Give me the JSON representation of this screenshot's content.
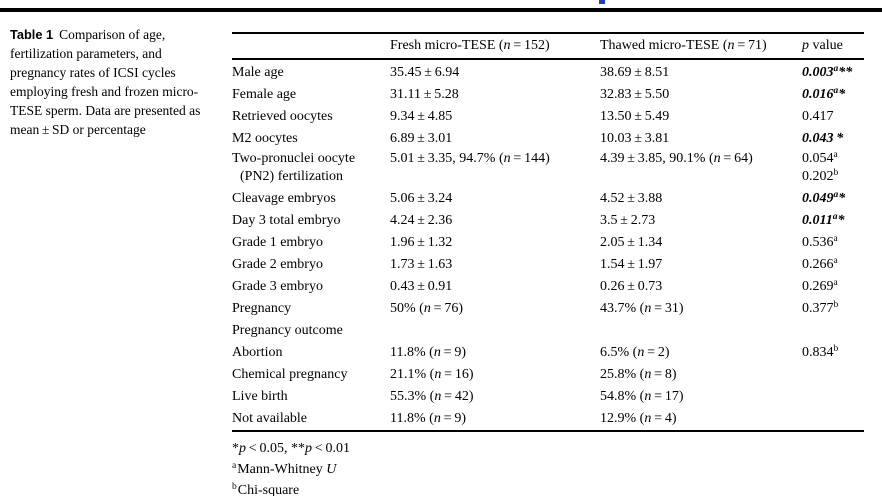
{
  "caption": {
    "label": "Table 1",
    "text": "Comparison of age, fertilization parameters, and pregnancy rates of ICSI cycles employing fresh and frozen micro-TESE sperm. Data are presented as mean ± SD or percentage"
  },
  "table": {
    "headers": {
      "fresh": {
        "pre": "Fresh micro-TESE (",
        "n": "n",
        "post": " = 152)"
      },
      "thawed": {
        "pre": "Thawed micro-TESE (",
        "n": "n",
        "post": " = 71)"
      },
      "p": {
        "italic": "p",
        "rest": " value"
      }
    },
    "rows": [
      {
        "row_class": "trow",
        "label": "Male age",
        "label2": "",
        "f_pre": "35.45 ± 6.94",
        "f_n": "",
        "f_post": "",
        "t_pre": "38.69 ± 8.51",
        "t_n": "",
        "t_post": "",
        "p1": "0.003",
        "p1_sup": "a",
        "p1_stars": "**",
        "p1_class": "pline sig",
        "p2": "",
        "p2_sup": ""
      },
      {
        "row_class": "trow",
        "label": "Female age",
        "label2": "",
        "f_pre": "31.11 ± 5.28",
        "f_n": "",
        "f_post": "",
        "t_pre": "32.83 ± 5.50",
        "t_n": "",
        "t_post": "",
        "p1": "0.016",
        "p1_sup": "a",
        "p1_stars": "*",
        "p1_class": "pline sig",
        "p2": "",
        "p2_sup": ""
      },
      {
        "row_class": "trow",
        "label": "Retrieved oocytes",
        "label2": "",
        "f_pre": "9.34 ± 4.85",
        "f_n": "",
        "f_post": "",
        "t_pre": "13.50 ± 5.49",
        "t_n": "",
        "t_post": "",
        "p1": "0.417",
        "p1_sup": "",
        "p1_stars": "",
        "p1_class": "pline",
        "p2": "",
        "p2_sup": ""
      },
      {
        "row_class": "trow",
        "label": "M2 oocytes",
        "label2": "",
        "f_pre": "6.89 ± 3.01",
        "f_n": "",
        "f_post": "",
        "t_pre": "10.03 ± 3.81",
        "t_n": "",
        "t_post": "",
        "p1": "0.043",
        "p1_sup": "",
        "p1_stars": " *",
        "p1_class": "pline sig",
        "p2": "",
        "p2_sup": ""
      },
      {
        "row_class": "trow tall",
        "label": "Two-pronuclei oocyte",
        "label2": "(PN2) fertilization",
        "f_pre": "5.01 ± 3.35, 94.7% (",
        "f_n": "n",
        "f_post": " = 144)",
        "t_pre": "4.39 ± 3.85, 90.1% (",
        "t_n": "n",
        "t_post": " = 64)",
        "p1": "0.054",
        "p1_sup": "a",
        "p1_stars": "",
        "p1_class": "pline",
        "p2": "0.202",
        "p2_sup": "b"
      },
      {
        "row_class": "trow",
        "label": "Cleavage embryos",
        "label2": "",
        "f_pre": "5.06 ± 3.24",
        "f_n": "",
        "f_post": "",
        "t_pre": "4.52 ± 3.88",
        "t_n": "",
        "t_post": "",
        "p1": "0.049",
        "p1_sup": "a",
        "p1_stars": "*",
        "p1_class": "pline sig",
        "p2": "",
        "p2_sup": ""
      },
      {
        "row_class": "trow",
        "label": "Day 3 total embryo",
        "label2": "",
        "f_pre": "4.24 ± 2.36",
        "f_n": "",
        "f_post": "",
        "t_pre": "3.5 ± 2.73",
        "t_n": "",
        "t_post": "",
        "p1": "0.011",
        "p1_sup": "a",
        "p1_stars": "*",
        "p1_class": "pline sig",
        "p2": "",
        "p2_sup": ""
      },
      {
        "row_class": "trow",
        "label": "Grade 1 embryo",
        "label2": "",
        "f_pre": "1.96 ± 1.32",
        "f_n": "",
        "f_post": "",
        "t_pre": "2.05 ± 1.34",
        "t_n": "",
        "t_post": "",
        "p1": "0.536",
        "p1_sup": "a",
        "p1_stars": "",
        "p1_class": "pline",
        "p2": "",
        "p2_sup": ""
      },
      {
        "row_class": "trow",
        "label": "Grade 2 embryo",
        "label2": "",
        "f_pre": "1.73 ± 1.63",
        "f_n": "",
        "f_post": "",
        "t_pre": "1.54 ± 1.97",
        "t_n": "",
        "t_post": "",
        "p1": "0.266",
        "p1_sup": "a",
        "p1_stars": "",
        "p1_class": "pline",
        "p2": "",
        "p2_sup": ""
      },
      {
        "row_class": "trow",
        "label": "Grade 3 embryo",
        "label2": "",
        "f_pre": "0.43 ± 0.91",
        "f_n": "",
        "f_post": "",
        "t_pre": "0.26 ± 0.73",
        "t_n": "",
        "t_post": "",
        "p1": "0.269",
        "p1_sup": "a",
        "p1_stars": "",
        "p1_class": "pline",
        "p2": "",
        "p2_sup": ""
      },
      {
        "row_class": "trow",
        "label": "Pregnancy",
        "label2": "",
        "f_pre": "50% (",
        "f_n": "n",
        "f_post": " = 76)",
        "t_pre": "43.7% (",
        "t_n": "n",
        "t_post": " = 31)",
        "p1": "0.377",
        "p1_sup": "b",
        "p1_stars": "",
        "p1_class": "pline",
        "p2": "",
        "p2_sup": ""
      },
      {
        "row_class": "trow",
        "label": "Pregnancy outcome",
        "label2": "",
        "f_pre": "",
        "f_n": "",
        "f_post": "",
        "t_pre": "",
        "t_n": "",
        "t_post": "",
        "p1": "",
        "p1_sup": "",
        "p1_stars": "",
        "p1_class": "pline",
        "p2": "",
        "p2_sup": ""
      },
      {
        "row_class": "trow",
        "label": "Abortion",
        "label2": "",
        "f_pre": "11.8% (",
        "f_n": "n",
        "f_post": " = 9)",
        "t_pre": "6.5% (",
        "t_n": "n",
        "t_post": " = 2)",
        "p1": "0.834",
        "p1_sup": "b",
        "p1_stars": "",
        "p1_class": "pline",
        "p2": "",
        "p2_sup": ""
      },
      {
        "row_class": "trow",
        "label": "Chemical pregnancy",
        "label2": "",
        "f_pre": "21.1% (",
        "f_n": "n",
        "f_post": " = 16)",
        "t_pre": "25.8% (",
        "t_n": "n",
        "t_post": " = 8)",
        "p1": "",
        "p1_sup": "",
        "p1_stars": "",
        "p1_class": "pline",
        "p2": "",
        "p2_sup": ""
      },
      {
        "row_class": "trow",
        "label": "Live birth",
        "label2": "",
        "f_pre": "55.3% (",
        "f_n": "n",
        "f_post": " = 42)",
        "t_pre": "54.8% (",
        "t_n": "n",
        "t_post": " = 17)",
        "p1": "",
        "p1_sup": "",
        "p1_stars": "",
        "p1_class": "pline",
        "p2": "",
        "p2_sup": ""
      },
      {
        "row_class": "trow",
        "label": "Not available",
        "label2": "",
        "f_pre": "11.8% (",
        "f_n": "n",
        "f_post": " = 9)",
        "t_pre": "12.9% (",
        "t_n": "n",
        "t_post": " = 4)",
        "p1": "",
        "p1_sup": "",
        "p1_stars": "",
        "p1_class": "pline",
        "p2": "",
        "p2_sup": ""
      }
    ]
  },
  "footnotes": {
    "sig": {
      "s1": "*",
      "p1": "p",
      "s2": " < 0.05, **",
      "p2": "p",
      "s3": " < 0.01"
    },
    "a": {
      "sup": "a",
      "text": "Mann-Whitney ",
      "italic": "U"
    },
    "b": {
      "sup": "b",
      "text": "Chi-square"
    }
  }
}
